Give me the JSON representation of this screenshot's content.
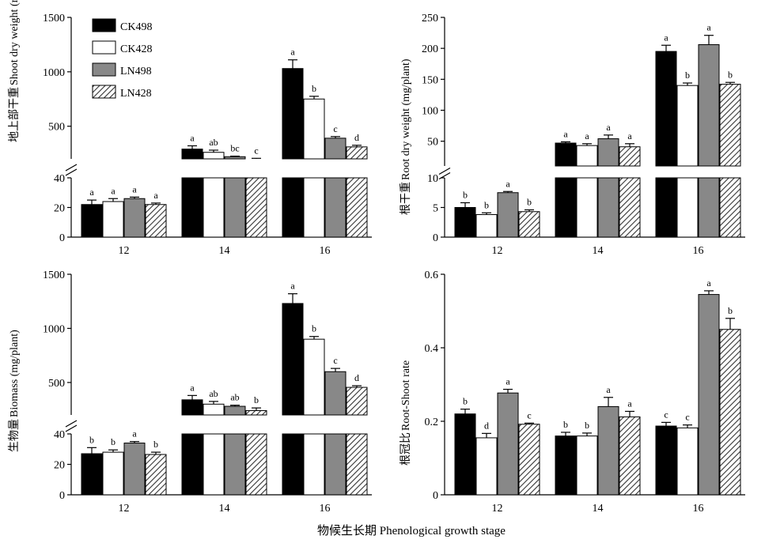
{
  "figure": {
    "xlabel": "物候生长期 Phenological growth stage"
  },
  "chart_data": [
    {
      "type": "bar",
      "ylabel": "Shoot dry weight (mg/plant)",
      "ylabel_cn": "地上部干重",
      "categories": [
        "12",
        "14",
        "16"
      ],
      "series": [
        {
          "name": "CK498",
          "values": [
            22,
            290,
            1030
          ],
          "errors": [
            3,
            30,
            80
          ],
          "letters": [
            "a",
            "a",
            "a"
          ]
        },
        {
          "name": "CK428",
          "values": [
            24,
            260,
            750
          ],
          "errors": [
            2,
            20,
            25
          ],
          "letters": [
            "a",
            "ab",
            "b"
          ]
        },
        {
          "name": "LN498",
          "values": [
            26,
            220,
            390
          ],
          "errors": [
            1,
            5,
            15
          ],
          "letters": [
            "a",
            "bc",
            "c"
          ]
        },
        {
          "name": "LN428",
          "values": [
            22,
            185,
            310
          ],
          "errors": [
            1,
            20,
            15
          ],
          "letters": [
            "a",
            "c",
            "d"
          ]
        }
      ],
      "lower_axis": {
        "range": [
          0,
          40
        ],
        "ticks": [
          "0",
          "20",
          "40"
        ]
      },
      "upper_axis": {
        "range": [
          200,
          1500
        ],
        "ticks": [
          "500",
          "1000",
          "1500"
        ]
      },
      "axis_break": true,
      "legend": [
        "CK498",
        "CK428",
        "LN498",
        "LN428"
      ],
      "legend_position": "top-left"
    },
    {
      "type": "bar",
      "ylabel": "Root dry weight (mg/plant)",
      "ylabel_cn": "根干重",
      "categories": [
        "12",
        "14",
        "16"
      ],
      "series": [
        {
          "name": "CK498",
          "values": [
            5,
            47,
            195
          ],
          "errors": [
            0.8,
            2,
            10
          ],
          "letters": [
            "b",
            "a",
            "a"
          ]
        },
        {
          "name": "CK428",
          "values": [
            3.8,
            43,
            140
          ],
          "errors": [
            0.3,
            3,
            4
          ],
          "letters": [
            "b",
            "a",
            "b"
          ]
        },
        {
          "name": "LN498",
          "values": [
            7.5,
            54,
            206
          ],
          "errors": [
            0.2,
            6,
            15
          ],
          "letters": [
            "a",
            "a",
            "a"
          ]
        },
        {
          "name": "LN428",
          "values": [
            4.3,
            41,
            142
          ],
          "errors": [
            0.3,
            5,
            3
          ],
          "letters": [
            "b",
            "a",
            "b"
          ]
        }
      ],
      "lower_axis": {
        "range": [
          0,
          10
        ],
        "ticks": [
          "0",
          "5",
          "10"
        ]
      },
      "upper_axis": {
        "range": [
          10,
          250
        ],
        "ticks": [
          "50",
          "100",
          "150",
          "200",
          "250"
        ]
      },
      "axis_break": true
    },
    {
      "type": "bar",
      "ylabel": "Biomass (mg/plant)",
      "ylabel_cn": "生物量",
      "categories": [
        "12",
        "14",
        "16"
      ],
      "series": [
        {
          "name": "CK498",
          "values": [
            27,
            340,
            1230
          ],
          "errors": [
            4,
            40,
            90
          ],
          "letters": [
            "b",
            "a",
            "a"
          ]
        },
        {
          "name": "CK428",
          "values": [
            28,
            300,
            900
          ],
          "errors": [
            1.5,
            25,
            25
          ],
          "letters": [
            "b",
            "ab",
            "b"
          ]
        },
        {
          "name": "LN498",
          "values": [
            34,
            280,
            600
          ],
          "errors": [
            1,
            10,
            30
          ],
          "letters": [
            "a",
            "ab",
            "c"
          ]
        },
        {
          "name": "LN428",
          "values": [
            26.5,
            240,
            455
          ],
          "errors": [
            1.5,
            25,
            15
          ],
          "letters": [
            "b",
            "b",
            "d"
          ]
        }
      ],
      "lower_axis": {
        "range": [
          0,
          40
        ],
        "ticks": [
          "0",
          "20",
          "40"
        ]
      },
      "upper_axis": {
        "range": [
          200,
          1500
        ],
        "ticks": [
          "500",
          "1000",
          "1500"
        ]
      },
      "axis_break": true
    },
    {
      "type": "bar",
      "ylabel": "Root-Shoot rate",
      "ylabel_cn": "根冠比",
      "categories": [
        "12",
        "14",
        "16"
      ],
      "series": [
        {
          "name": "CK498",
          "values": [
            0.22,
            0.16,
            0.187
          ],
          "errors": [
            0.013,
            0.01,
            0.01
          ],
          "letters": [
            "b",
            "b",
            "c"
          ]
        },
        {
          "name": "CK428",
          "values": [
            0.155,
            0.16,
            0.182
          ],
          "errors": [
            0.012,
            0.008,
            0.008
          ],
          "letters": [
            "d",
            "b",
            "c"
          ]
        },
        {
          "name": "LN498",
          "values": [
            0.277,
            0.24,
            0.545
          ],
          "errors": [
            0.01,
            0.025,
            0.01
          ],
          "letters": [
            "a",
            "a",
            "a"
          ]
        },
        {
          "name": "LN428",
          "values": [
            0.192,
            0.212,
            0.45
          ],
          "errors": [
            0.003,
            0.015,
            0.03
          ],
          "letters": [
            "c",
            "a",
            "b"
          ]
        }
      ],
      "axis": {
        "range": [
          0,
          0.6
        ],
        "ticks": [
          "0",
          "0.2",
          "0.4",
          "0.6"
        ]
      },
      "axis_break": false
    }
  ],
  "colors": {
    "CK498": "#000000",
    "CK428": "#ffffff",
    "LN498": "#888888",
    "LN428": "hatched"
  }
}
